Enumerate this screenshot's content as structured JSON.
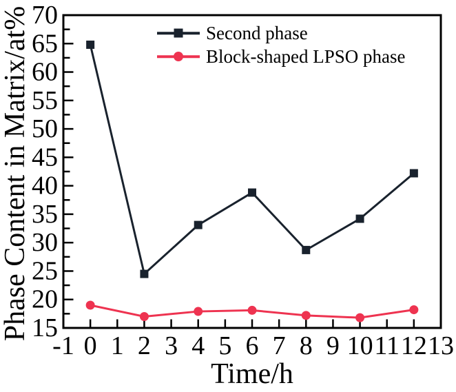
{
  "chart_data": {
    "type": "line",
    "title": "",
    "xlabel": "Time/h",
    "ylabel": "Phase Content in Matrix/at%",
    "xlim": [
      -1,
      13
    ],
    "ylim": [
      15,
      70
    ],
    "x_ticks": [
      -1,
      0,
      1,
      2,
      3,
      4,
      5,
      6,
      7,
      8,
      9,
      10,
      11,
      12,
      13
    ],
    "y_ticks": [
      15,
      20,
      25,
      30,
      35,
      40,
      45,
      50,
      55,
      60,
      65,
      70
    ],
    "y_minor_step": 2.5,
    "grid": false,
    "legend_position": "inside-top-center",
    "x": [
      0,
      2,
      4,
      6,
      8,
      10,
      12
    ],
    "series": [
      {
        "name": "Second phase",
        "marker": "square",
        "color": "#19222d",
        "values": [
          64.8,
          24.5,
          33.1,
          38.8,
          28.7,
          34.2,
          42.2
        ]
      },
      {
        "name": "Block-shaped LPSO phase",
        "marker": "circle",
        "color": "#ee3350",
        "values": [
          19.0,
          17.0,
          17.9,
          18.1,
          17.2,
          16.8,
          18.2
        ]
      }
    ]
  },
  "colors": {
    "axis": "#000000",
    "background": "#ffffff",
    "series_black": "#19222d",
    "series_red": "#ee3350"
  }
}
